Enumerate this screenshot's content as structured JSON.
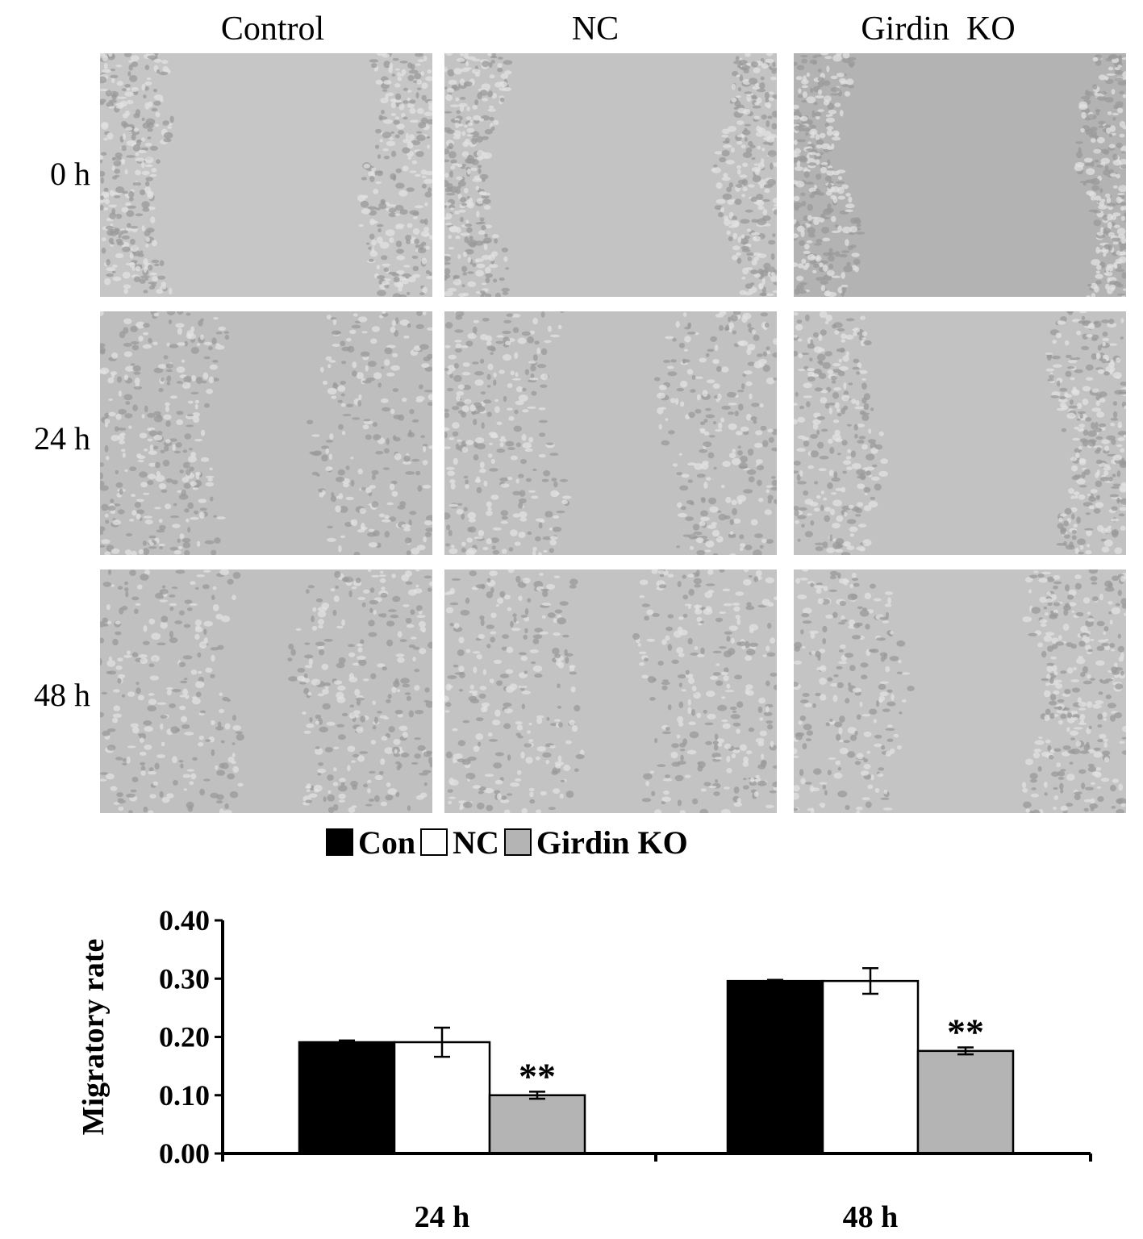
{
  "panel_grid": {
    "columns": [
      "Control",
      "NC",
      "Girdin  KO"
    ],
    "rows": [
      "0 h",
      "24 h",
      "48 h"
    ],
    "tones": [
      [
        "#c6c6c6",
        "#c3c3c3",
        "#b3b3b3"
      ],
      [
        "#bebebe",
        "#c1c1c1",
        "#c2c2c2"
      ],
      [
        "#c0c0c0",
        "#c3c3c3",
        "#c4c4c4"
      ]
    ],
    "gap_fraction": {
      "0 h": [
        0.62,
        0.68,
        0.71
      ],
      "24 h": [
        0.3,
        0.33,
        0.55
      ],
      "48 h": [
        0.2,
        0.2,
        0.4
      ]
    }
  },
  "legend": {
    "items": [
      {
        "label": "Con",
        "color": "#000000"
      },
      {
        "label": "NC",
        "color": "#ffffff"
      },
      {
        "label": "Girdin KO",
        "color": "#b4b4b4"
      }
    ]
  },
  "chart_data": {
    "type": "bar",
    "categories": [
      "24 h",
      "48 h"
    ],
    "series": [
      {
        "name": "Con",
        "color": "#000000",
        "values": [
          0.191,
          0.296
        ],
        "errors": [
          0.003,
          0.002
        ]
      },
      {
        "name": "NC",
        "color": "#ffffff",
        "values": [
          0.191,
          0.296
        ],
        "errors": [
          0.025,
          0.022
        ]
      },
      {
        "name": "Girdin KO",
        "color": "#b4b4b4",
        "values": [
          0.1,
          0.176
        ],
        "errors": [
          0.006,
          0.006
        ]
      }
    ],
    "annotations": [
      {
        "series": "Girdin KO",
        "category": "24 h",
        "text": "**"
      },
      {
        "series": "Girdin KO",
        "category": "48 h",
        "text": "**"
      }
    ],
    "ylabel": "Migratory rate",
    "xlabel": "",
    "ylim": [
      0,
      0.4
    ],
    "yticks": [
      "0.00",
      "0.10",
      "0.20",
      "0.30",
      "0.40"
    ],
    "grid": false,
    "legend_position": "top-center"
  }
}
